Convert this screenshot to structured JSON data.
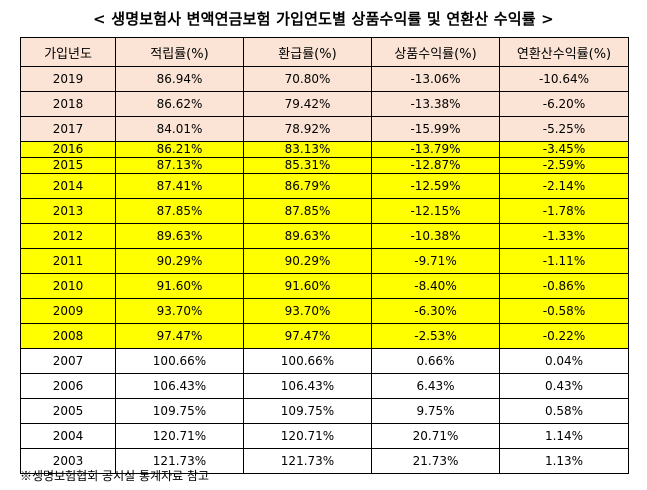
{
  "title": "< 생명보험사 변액연금보험 가입연도별 상품수익률 및 연환산 수익률 >",
  "headers": [
    "가입년도",
    "적립률(%)",
    "환급률(%)",
    "상품수익률(%)",
    "연환산수익률(%)"
  ],
  "rows": [
    {
      "year": "2019",
      "accumulation": "86.94%",
      "refund": "70.80%",
      "product_return": "-13.06%",
      "annualized": "-10.64%",
      "highlight": "peach"
    },
    {
      "year": "2018",
      "accumulation": "86.62%",
      "refund": "79.42%",
      "product_return": "-13.38%",
      "annualized": "-6.20%",
      "highlight": "peach"
    },
    {
      "year": "2017",
      "accumulation": "84.01%",
      "refund": "78.92%",
      "product_return": "-15.99%",
      "annualized": "-5.25%",
      "highlight": "peach"
    },
    {
      "year": "2016",
      "accumulation": "86.21%",
      "refund": "83.13%",
      "product_return": "-13.79%",
      "annualized": "-3.45%",
      "highlight": "yellow"
    },
    {
      "year": "2015",
      "accumulation": "87.13%",
      "refund": "85.31%",
      "product_return": "-12.87%",
      "annualized": "-2.59%",
      "highlight": "yellow"
    },
    {
      "year": "2014",
      "accumulation": "87.41%",
      "refund": "86.79%",
      "product_return": "-12.59%",
      "annualized": "-2.14%",
      "highlight": "yellow"
    },
    {
      "year": "2013",
      "accumulation": "87.85%",
      "refund": "87.85%",
      "product_return": "-12.15%",
      "annualized": "-1.78%",
      "highlight": "yellow"
    },
    {
      "year": "2012",
      "accumulation": "89.63%",
      "refund": "89.63%",
      "product_return": "-10.38%",
      "annualized": "-1.33%",
      "highlight": "yellow"
    },
    {
      "year": "2011",
      "accumulation": "90.29%",
      "refund": "90.29%",
      "product_return": "-9.71%",
      "annualized": "-1.11%",
      "highlight": "yellow"
    },
    {
      "year": "2010",
      "accumulation": "91.60%",
      "refund": "91.60%",
      "product_return": "-8.40%",
      "annualized": "-0.86%",
      "highlight": "yellow"
    },
    {
      "year": "2009",
      "accumulation": "93.70%",
      "refund": "93.70%",
      "product_return": "-6.30%",
      "annualized": "-0.58%",
      "highlight": "yellow"
    },
    {
      "year": "2008",
      "accumulation": "97.47%",
      "refund": "97.47%",
      "product_return": "-2.53%",
      "annualized": "-0.22%",
      "highlight": "yellow"
    },
    {
      "year": "2007",
      "accumulation": "100.66%",
      "refund": "100.66%",
      "product_return": "0.66%",
      "annualized": "0.04%",
      "highlight": "white"
    },
    {
      "year": "2006",
      "accumulation": "106.43%",
      "refund": "106.43%",
      "product_return": "6.43%",
      "annualized": "0.43%",
      "highlight": "white"
    },
    {
      "year": "2005",
      "accumulation": "109.75%",
      "refund": "109.75%",
      "product_return": "9.75%",
      "annualized": "0.58%",
      "highlight": "white"
    },
    {
      "year": "2004",
      "accumulation": "120.71%",
      "refund": "120.71%",
      "product_return": "20.71%",
      "annualized": "1.14%",
      "highlight": "white"
    },
    {
      "year": "2003",
      "accumulation": "121.73%",
      "refund": "121.73%",
      "product_return": "21.73%",
      "annualized": "1.13%",
      "highlight": "white"
    }
  ],
  "colors": {
    "peach": "#fbe4d5",
    "yellow": "#ffff00",
    "white": "#ffffff",
    "border": "#000000"
  },
  "note": "※생명보험협회 공시실 통계자료 참고"
}
